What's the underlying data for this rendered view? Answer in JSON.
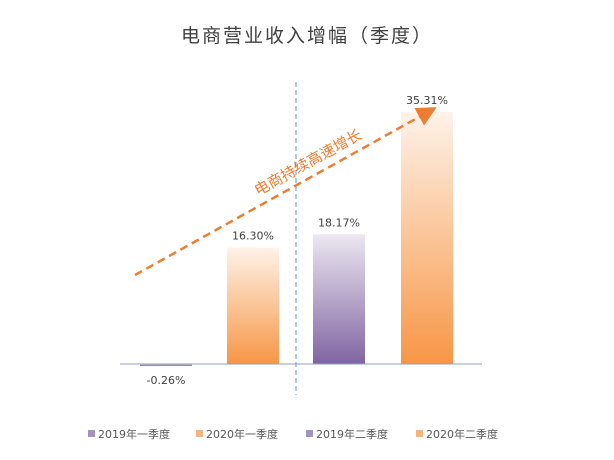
{
  "chart_data": {
    "type": "bar",
    "title": "电商营业收入增幅（季度）",
    "categories": [
      "2019年一季度",
      "2020年一季度",
      "2019年二季度",
      "2020年二季度"
    ],
    "values": [
      -0.26,
      16.3,
      18.17,
      35.31
    ],
    "data_labels": [
      "-0.26%",
      "16.30%",
      "18.17%",
      "35.31%"
    ],
    "unit": "%",
    "colors": [
      "#8064A2",
      "#F79646",
      "#8064A2",
      "#F79646"
    ],
    "legend": {
      "position": "bottom",
      "entries": [
        "2019年一季度",
        "2020年一季度",
        "2019年二季度",
        "2020年二季度"
      ]
    },
    "annotation": {
      "text": "电商持续高速增长",
      "color": "#ED7D31",
      "arrow": "dashed"
    },
    "grid": false,
    "ylim": [
      -1,
      36
    ]
  }
}
